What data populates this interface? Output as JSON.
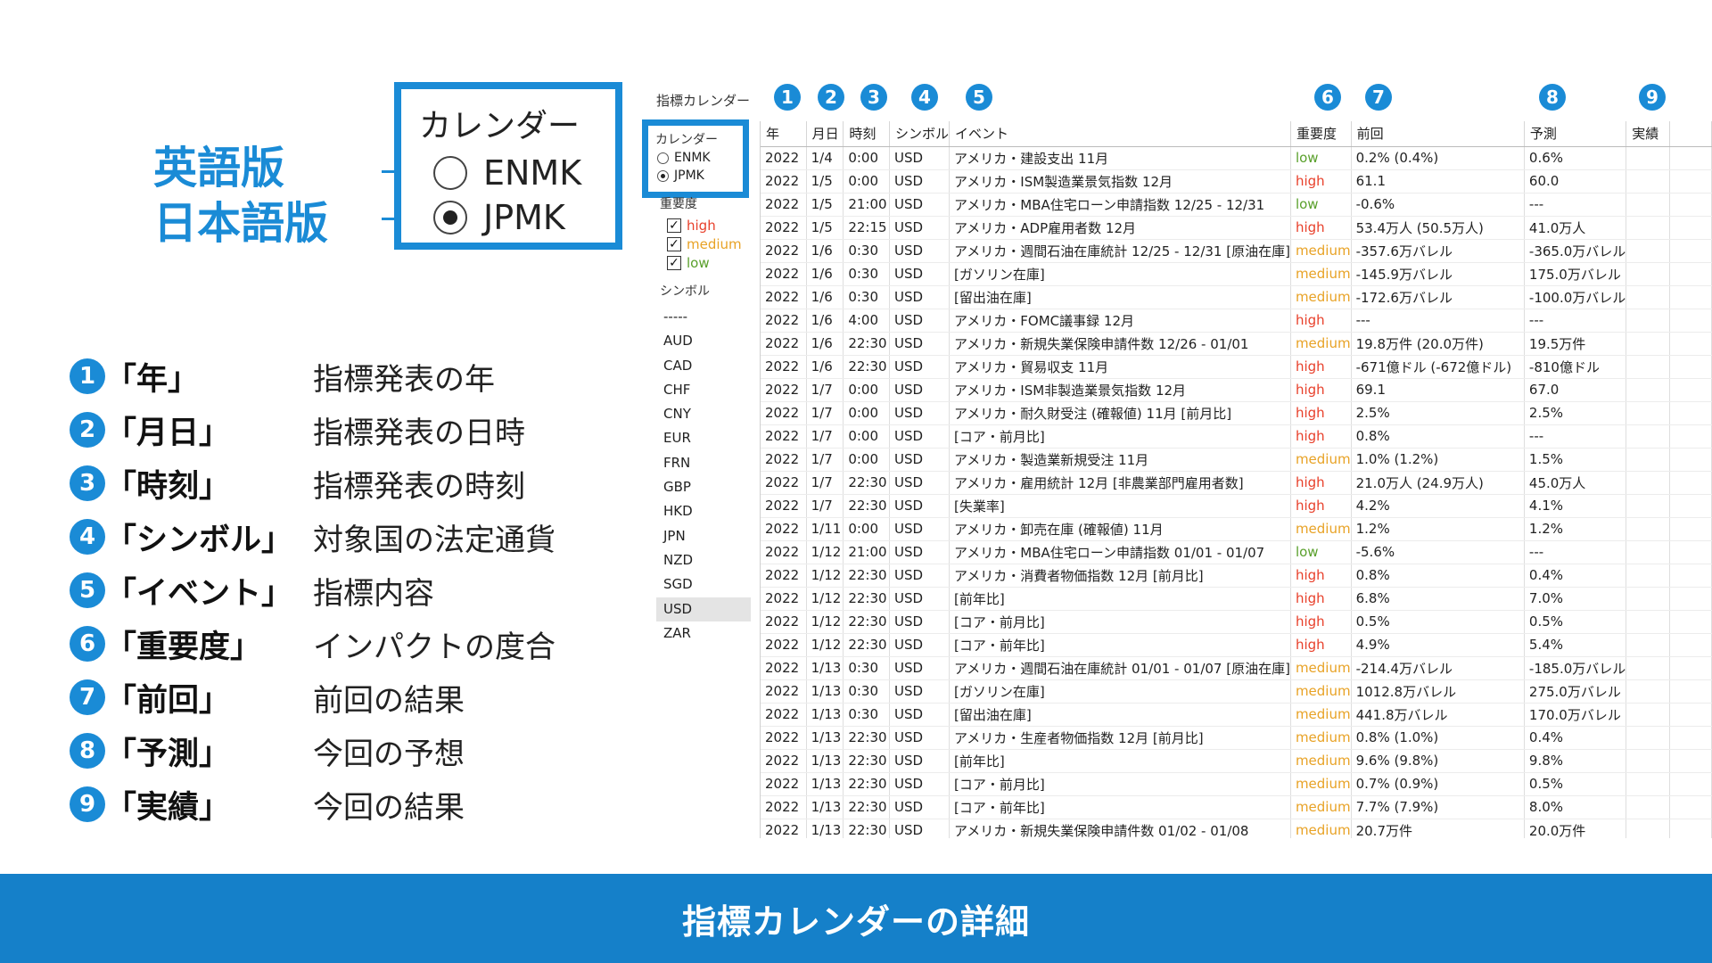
{
  "lang_labels": {
    "english": "英語版",
    "japanese": "日本語版"
  },
  "zoom_calendar": {
    "title": "カレンダー",
    "options": [
      {
        "label": "ENMK",
        "selected": false
      },
      {
        "label": "JPMK",
        "selected": true
      }
    ]
  },
  "legend": [
    {
      "num": "1",
      "term": "「年」",
      "desc": "指標発表の年"
    },
    {
      "num": "2",
      "term": "「月日」",
      "desc": "指標発表の日時"
    },
    {
      "num": "3",
      "term": "「時刻」",
      "desc": "指標発表の時刻"
    },
    {
      "num": "4",
      "term": "「シンボル」",
      "desc": "対象国の法定通貨"
    },
    {
      "num": "5",
      "term": "「イベント」",
      "desc": "指標内容"
    },
    {
      "num": "6",
      "term": "「重要度」",
      "desc": "インパクトの度合"
    },
    {
      "num": "7",
      "term": "「前回」",
      "desc": "前回の結果"
    },
    {
      "num": "8",
      "term": "「予測」",
      "desc": "今回の予想"
    },
    {
      "num": "9",
      "term": "「実績」",
      "desc": "今回の結果"
    }
  ],
  "app": {
    "title": "指標カレンダー",
    "calendar_group": {
      "title": "カレンダー",
      "options": [
        {
          "label": "ENMK",
          "selected": false
        },
        {
          "label": "JPMK",
          "selected": true
        }
      ]
    },
    "importance_title": "重要度",
    "importance": [
      {
        "label": "high",
        "checked": true,
        "color": "#e8402b"
      },
      {
        "label": "medium",
        "checked": true,
        "color": "#e8a225"
      },
      {
        "label": "low",
        "checked": true,
        "color": "#5aa02c"
      }
    ],
    "symbol_title": "シンボル",
    "symbols": [
      "-----",
      "AUD",
      "CAD",
      "CHF",
      "CNY",
      "EUR",
      "FRN",
      "GBP",
      "HKD",
      "JPN",
      "NZD",
      "SGD",
      "USD",
      "ZAR"
    ],
    "selected_symbol": "USD",
    "markers": [
      "1",
      "2",
      "3",
      "4",
      "5",
      "6",
      "7",
      "8",
      "9"
    ],
    "columns": [
      "年",
      "月日",
      "時刻",
      "シンボル",
      "イベント",
      "重要度",
      "前回",
      "予測",
      "実績"
    ],
    "rows": [
      [
        "2022",
        "1/4",
        "0:00",
        "USD",
        "アメリカ・建設支出 11月",
        "low",
        "0.2% (0.4%)",
        "0.6%",
        ""
      ],
      [
        "2022",
        "1/5",
        "0:00",
        "USD",
        "アメリカ・ISM製造業景気指数 12月",
        "high",
        "61.1",
        "60.0",
        ""
      ],
      [
        "2022",
        "1/5",
        "21:00",
        "USD",
        "アメリカ・MBA住宅ローン申請指数 12/25 - 12/31",
        "low",
        "-0.6%",
        "---",
        ""
      ],
      [
        "2022",
        "1/5",
        "22:15",
        "USD",
        "アメリカ・ADP雇用者数 12月",
        "high",
        "53.4万人 (50.5万人)",
        "41.0万人",
        ""
      ],
      [
        "2022",
        "1/6",
        "0:30",
        "USD",
        "アメリカ・週間石油在庫統計 12/25 - 12/31 [原油在庫]",
        "medium",
        "-357.6万バレル",
        "-365.0万バレル",
        ""
      ],
      [
        "2022",
        "1/6",
        "0:30",
        "USD",
        "[ガソリン在庫]",
        "medium",
        "-145.9万バレル",
        "175.0万バレル",
        ""
      ],
      [
        "2022",
        "1/6",
        "0:30",
        "USD",
        "[留出油在庫]",
        "medium",
        "-172.6万バレル",
        "-100.0万バレル",
        ""
      ],
      [
        "2022",
        "1/6",
        "4:00",
        "USD",
        "アメリカ・FOMC議事録 12月",
        "high",
        "---",
        "---",
        ""
      ],
      [
        "2022",
        "1/6",
        "22:30",
        "USD",
        "アメリカ・新規失業保険申請件数 12/26 - 01/01",
        "medium",
        "19.8万件 (20.0万件)",
        "19.5万件",
        ""
      ],
      [
        "2022",
        "1/6",
        "22:30",
        "USD",
        "アメリカ・貿易収支 11月",
        "high",
        "-671億ドル (-672億ドル)",
        "-810億ドル",
        ""
      ],
      [
        "2022",
        "1/7",
        "0:00",
        "USD",
        "アメリカ・ISM非製造業景気指数 12月",
        "high",
        "69.1",
        "67.0",
        ""
      ],
      [
        "2022",
        "1/7",
        "0:00",
        "USD",
        "アメリカ・耐久財受注 (確報値) 11月 [前月比]",
        "high",
        "2.5%",
        "2.5%",
        ""
      ],
      [
        "2022",
        "1/7",
        "0:00",
        "USD",
        "[コア・前月比]",
        "high",
        "0.8%",
        "---",
        ""
      ],
      [
        "2022",
        "1/7",
        "0:00",
        "USD",
        "アメリカ・製造業新規受注 11月",
        "medium",
        "1.0% (1.2%)",
        "1.5%",
        ""
      ],
      [
        "2022",
        "1/7",
        "22:30",
        "USD",
        "アメリカ・雇用統計 12月 [非農業部門雇用者数]",
        "high",
        "21.0万人 (24.9万人)",
        "45.0万人",
        ""
      ],
      [
        "2022",
        "1/7",
        "22:30",
        "USD",
        "[失業率]",
        "high",
        "4.2%",
        "4.1%",
        ""
      ],
      [
        "2022",
        "1/11",
        "0:00",
        "USD",
        "アメリカ・卸売在庫 (確報値) 11月",
        "medium",
        "1.2%",
        "1.2%",
        ""
      ],
      [
        "2022",
        "1/12",
        "21:00",
        "USD",
        "アメリカ・MBA住宅ローン申請指数 01/01 - 01/07",
        "low",
        "-5.6%",
        "---",
        ""
      ],
      [
        "2022",
        "1/12",
        "22:30",
        "USD",
        "アメリカ・消費者物価指数 12月 [前月比]",
        "high",
        "0.8%",
        "0.4%",
        ""
      ],
      [
        "2022",
        "1/12",
        "22:30",
        "USD",
        "[前年比]",
        "high",
        "6.8%",
        "7.0%",
        ""
      ],
      [
        "2022",
        "1/12",
        "22:30",
        "USD",
        "[コア・前月比]",
        "high",
        "0.5%",
        "0.5%",
        ""
      ],
      [
        "2022",
        "1/12",
        "22:30",
        "USD",
        "[コア・前年比]",
        "high",
        "4.9%",
        "5.4%",
        ""
      ],
      [
        "2022",
        "1/13",
        "0:30",
        "USD",
        "アメリカ・週間石油在庫統計 01/01 - 01/07 [原油在庫]",
        "medium",
        "-214.4万バレル",
        "-185.0万バレル",
        ""
      ],
      [
        "2022",
        "1/13",
        "0:30",
        "USD",
        "[ガソリン在庫]",
        "medium",
        "1012.8万バレル",
        "275.0万バレル",
        ""
      ],
      [
        "2022",
        "1/13",
        "0:30",
        "USD",
        "[留出油在庫]",
        "medium",
        "441.8万バレル",
        "170.0万バレル",
        ""
      ],
      [
        "2022",
        "1/13",
        "22:30",
        "USD",
        "アメリカ・生産者物価指数 12月 [前月比]",
        "medium",
        "0.8% (1.0%)",
        "0.4%",
        ""
      ],
      [
        "2022",
        "1/13",
        "22:30",
        "USD",
        "[前年比]",
        "medium",
        "9.6% (9.8%)",
        "9.8%",
        ""
      ],
      [
        "2022",
        "1/13",
        "22:30",
        "USD",
        "[コア・前月比]",
        "medium",
        "0.7% (0.9%)",
        "0.5%",
        ""
      ],
      [
        "2022",
        "1/13",
        "22:30",
        "USD",
        "[コア・前年比]",
        "medium",
        "7.7% (7.9%)",
        "8.0%",
        ""
      ],
      [
        "2022",
        "1/13",
        "22:30",
        "USD",
        "アメリカ・新規失業保険申請件数 01/02 - 01/08",
        "medium",
        "20.7万件",
        "20.0万件",
        ""
      ]
    ]
  },
  "footer": {
    "title": "指標カレンダーの詳細"
  },
  "colors": {
    "accent": "#1a8bd6",
    "footer_bg": "#1580c9"
  }
}
